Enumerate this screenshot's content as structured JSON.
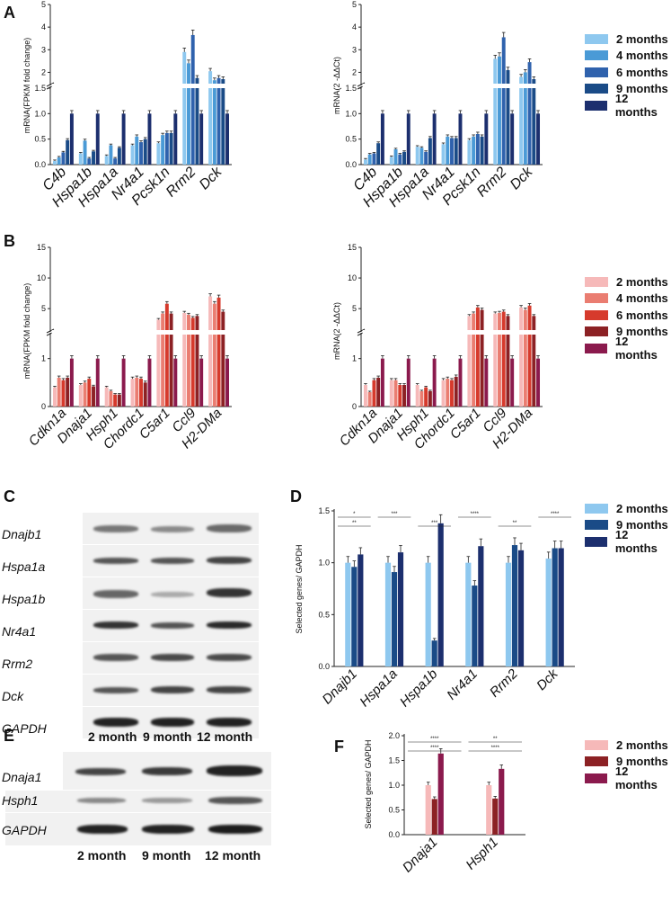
{
  "panels": {
    "A": "A",
    "B": "B",
    "C": "C",
    "D": "D",
    "E": "E",
    "F": "F"
  },
  "colors": {
    "blue": [
      "#8ec8ef",
      "#4a9ad6",
      "#2f62ad",
      "#1a4b87",
      "#1c2f6e"
    ],
    "red": [
      "#f6b9b9",
      "#ea7d71",
      "#d63a2c",
      "#8c2124",
      "#8b1a4d"
    ],
    "blue3": [
      "#8ec8ef",
      "#1a4b87",
      "#1c2f6e"
    ],
    "red3": [
      "#f6b9b9",
      "#8c2124",
      "#8b1a4d"
    ]
  },
  "legend_A": [
    "2 months",
    "4 months",
    "6 months",
    "9 months",
    "12 months"
  ],
  "legend_B": [
    "2 months",
    "4 months",
    "6 months",
    "9 months",
    "12 months"
  ],
  "legend_D": [
    "2 months",
    "9 months",
    "12 months"
  ],
  "legend_F": [
    "2 months",
    "9 months",
    "12 months"
  ],
  "chart_data": [
    {
      "id": "A-left",
      "type": "bar",
      "ylabel": "mRNA(FPKM fold change)",
      "categories": [
        "C4b",
        "Hspa1b",
        "Hspa1a",
        "Nr4a1",
        "Pcsk1n",
        "Rrm2",
        "Dck"
      ],
      "y_axis": "broken",
      "lower_range": [
        0,
        1.5
      ],
      "upper_range": [
        1.5,
        5
      ],
      "lower_ticks": [
        "0.0",
        "0.5",
        "1.0",
        "1.5"
      ],
      "upper_ticks": [
        "2",
        "3",
        "4",
        "5"
      ],
      "series": [
        {
          "name": "2 months",
          "values": [
            0.07,
            0.22,
            0.17,
            0.38,
            0.42,
            2.9,
            2.05
          ]
        },
        {
          "name": "4 months",
          "values": [
            0.14,
            0.47,
            0.38,
            0.55,
            0.58,
            2.4,
            1.65
          ]
        },
        {
          "name": "6 months",
          "values": [
            0.24,
            0.12,
            0.12,
            0.44,
            0.62,
            3.65,
            1.75
          ]
        },
        {
          "name": "9 months",
          "values": [
            0.48,
            0.26,
            0.33,
            0.5,
            0.62,
            1.75,
            1.7
          ]
        },
        {
          "name": "12 months",
          "values": [
            1.0,
            1.0,
            1.0,
            1.0,
            1.0,
            1.0,
            1.0
          ]
        }
      ]
    },
    {
      "id": "A-right",
      "type": "bar",
      "ylabel": "mRNA(2 -ΔΔCt)",
      "categories": [
        "C4b",
        "Hspa1b",
        "Hspa1a",
        "Nr4a1",
        "Pcsk1n",
        "Rrm2",
        "Dck"
      ],
      "y_axis": "broken",
      "lower_range": [
        0,
        1.5
      ],
      "upper_range": [
        1.5,
        5
      ],
      "lower_ticks": [
        "0.0",
        "0.5",
        "1.0",
        "1.5"
      ],
      "upper_ticks": [
        "2",
        "3",
        "4",
        "5"
      ],
      "series": [
        {
          "name": "2 months",
          "values": [
            0.1,
            0.15,
            0.35,
            0.4,
            0.48,
            2.6,
            1.8
          ]
        },
        {
          "name": "4 months",
          "values": [
            0.2,
            0.3,
            0.33,
            0.55,
            0.55,
            2.7,
            2.0
          ]
        },
        {
          "name": "6 months",
          "values": [
            0.22,
            0.2,
            0.25,
            0.52,
            0.6,
            3.55,
            2.45
          ]
        },
        {
          "name": "9 months",
          "values": [
            0.42,
            0.25,
            0.52,
            0.52,
            0.55,
            2.1,
            1.7
          ]
        },
        {
          "name": "12 months",
          "values": [
            1.0,
            1.0,
            1.0,
            1.0,
            1.0,
            1.0,
            1.0
          ]
        }
      ]
    },
    {
      "id": "B-left",
      "type": "bar",
      "ylabel": "mRNA(FPKM fold change)",
      "categories": [
        "Cdkn1a",
        "Dnaja1",
        "Hsph1",
        "Chordc1",
        "C5ar1",
        "Ccl9",
        "H2-DMa"
      ],
      "y_axis": "broken",
      "lower_range": [
        0,
        1.5
      ],
      "upper_range": [
        1.5,
        15
      ],
      "lower_ticks": [
        "0",
        "1"
      ],
      "upper_ticks": [
        "5",
        "10",
        "15"
      ],
      "series": [
        {
          "name": "2 months",
          "values": [
            0.4,
            0.45,
            0.4,
            0.58,
            3.2,
            4.3,
            7.0
          ]
        },
        {
          "name": "4 months",
          "values": [
            0.6,
            0.5,
            0.32,
            0.6,
            4.2,
            4.0,
            5.8
          ]
        },
        {
          "name": "6 months",
          "values": [
            0.55,
            0.58,
            0.25,
            0.58,
            5.8,
            3.5,
            6.8
          ]
        },
        {
          "name": "9 months",
          "values": [
            0.6,
            0.42,
            0.25,
            0.5,
            4.2,
            3.8,
            4.5
          ]
        },
        {
          "name": "12 months",
          "values": [
            1.0,
            1.0,
            1.0,
            1.0,
            1.0,
            1.0,
            1.0
          ]
        }
      ]
    },
    {
      "id": "B-right",
      "type": "bar",
      "ylabel": "mRNA(2 -ΔΔCt)",
      "categories": [
        "Cdkn1a",
        "Dnaja1",
        "Hsph1",
        "Chordc1",
        "C5ar1",
        "Ccl9",
        "H2-DMa"
      ],
      "y_axis": "broken",
      "lower_range": [
        0,
        1.5
      ],
      "upper_range": [
        1.5,
        15
      ],
      "lower_ticks": [
        "0",
        "1"
      ],
      "upper_ticks": [
        "5",
        "10",
        "15"
      ],
      "series": [
        {
          "name": "2 months",
          "values": [
            0.45,
            0.55,
            0.45,
            0.55,
            3.8,
            4.2,
            5.2
          ]
        },
        {
          "name": "4 months",
          "values": [
            0.3,
            0.55,
            0.32,
            0.58,
            4.2,
            4.3,
            4.8
          ]
        },
        {
          "name": "6 months",
          "values": [
            0.55,
            0.45,
            0.4,
            0.55,
            5.2,
            4.5,
            5.5
          ]
        },
        {
          "name": "9 months",
          "values": [
            0.6,
            0.45,
            0.32,
            0.62,
            4.8,
            3.8,
            3.8
          ]
        },
        {
          "name": "12 months",
          "values": [
            1.0,
            1.0,
            1.0,
            1.0,
            1.0,
            1.0,
            1.0
          ]
        }
      ]
    },
    {
      "id": "D",
      "type": "bar",
      "ylabel": "Selected genes/ GAPDH",
      "categories": [
        "Dnajb1",
        "Hspa1a",
        "Hspa1b",
        "Nr4a1",
        "Rrm2",
        "Dck"
      ],
      "ylim": [
        0,
        1.5
      ],
      "ticks": [
        "0.0",
        "0.5",
        "1.0",
        "1.5"
      ],
      "series": [
        {
          "name": "2 months",
          "values": [
            1.0,
            1.0,
            1.0,
            1.0,
            1.0,
            1.04
          ]
        },
        {
          "name": "9 months",
          "values": [
            0.96,
            0.91,
            0.25,
            0.78,
            1.17,
            1.14
          ]
        },
        {
          "name": "12 months",
          "values": [
            1.08,
            1.1,
            1.38,
            1.16,
            1.12,
            1.14
          ]
        }
      ],
      "significance": [
        "*",
        "**",
        "***",
        "***",
        "****",
        "**",
        "****"
      ]
    },
    {
      "id": "F",
      "type": "bar",
      "ylabel": "Selected genes/ GAPDH",
      "categories": [
        "Dnaja1",
        "Hsph1"
      ],
      "ylim": [
        0,
        2.0
      ],
      "ticks": [
        "0.0",
        "0.5",
        "1.0",
        "1.5",
        "2.0"
      ],
      "series": [
        {
          "name": "2 months",
          "values": [
            1.0,
            1.0
          ]
        },
        {
          "name": "9 months",
          "values": [
            0.72,
            0.73
          ]
        },
        {
          "name": "12 months",
          "values": [
            1.64,
            1.33
          ]
        }
      ],
      "significance": [
        "****",
        "****",
        "**",
        "****"
      ]
    }
  ],
  "blot_C": {
    "labels": [
      "Dnajb1",
      "Hspa1a",
      "Hspa1b",
      "Nr4a1",
      "Rrm2",
      "Dck",
      "GAPDH"
    ],
    "timepoints": [
      "2 month",
      "9 month",
      "12 month"
    ]
  },
  "blot_E": {
    "labels": [
      "Dnaja1",
      "Hsph1",
      "GAPDH"
    ],
    "timepoints": [
      "2 month",
      "9 month",
      "12 month"
    ]
  }
}
